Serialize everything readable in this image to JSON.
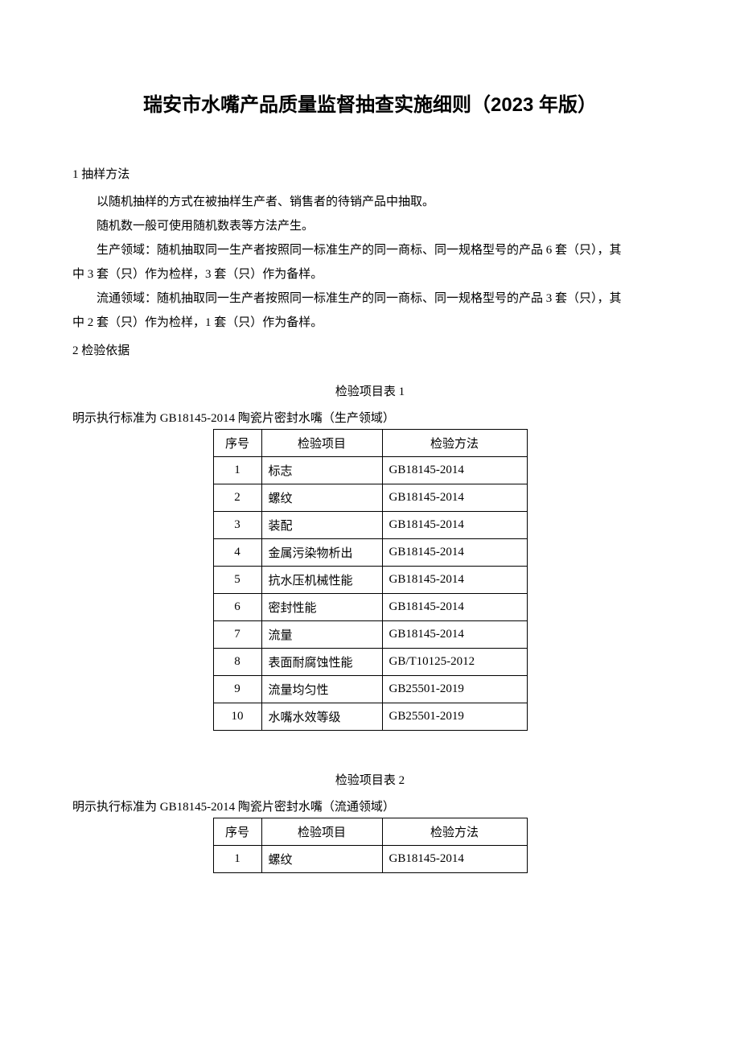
{
  "title": "瑞安市水嘴产品质量监督抽查实施细则（2023 年版）",
  "section1": {
    "heading": "1 抽样方法",
    "p1": "以随机抽样的方式在被抽样生产者、销售者的待销产品中抽取。",
    "p2": "随机数一般可使用随机数表等方法产生。",
    "p3a": "生产领域：随机抽取同一生产者按照同一标准生产的同一商标、同一规格型号的产品 6 套（只），其",
    "p3b": "中 3 套（只）作为检样，3 套（只）作为备样。",
    "p4a": "流通领域：随机抽取同一生产者按照同一标准生产的同一商标、同一规格型号的产品 3 套（只），其",
    "p4b": "中 2 套（只）作为检样，1 套（只）作为备样。"
  },
  "section2": {
    "heading": "2 检验依据"
  },
  "table1": {
    "caption": "检验项目表 1",
    "subtitle": "明示执行标准为 GB18145-2014 陶瓷片密封水嘴（生产领域）",
    "headers": {
      "num": "序号",
      "item": "检验项目",
      "method": "检验方法"
    },
    "rows": [
      {
        "num": "1",
        "item": "标志",
        "method": "GB18145-2014"
      },
      {
        "num": "2",
        "item": "螺纹",
        "method": "GB18145-2014"
      },
      {
        "num": "3",
        "item": "装配",
        "method": "GB18145-2014"
      },
      {
        "num": "4",
        "item": "金属污染物析出",
        "method": "GB18145-2014"
      },
      {
        "num": "5",
        "item": "抗水压机械性能",
        "method": "GB18145-2014"
      },
      {
        "num": "6",
        "item": "密封性能",
        "method": "GB18145-2014"
      },
      {
        "num": "7",
        "item": "流量",
        "method": "GB18145-2014"
      },
      {
        "num": "8",
        "item": "表面耐腐蚀性能",
        "method": "GB/T10125-2012"
      },
      {
        "num": "9",
        "item": "流量均匀性",
        "method": "GB25501-2019"
      },
      {
        "num": "10",
        "item": "水嘴水效等级",
        "method": "GB25501-2019"
      }
    ]
  },
  "table2": {
    "caption": "检验项目表 2",
    "subtitle": "明示执行标准为 GB18145-2014 陶瓷片密封水嘴（流通领域）",
    "headers": {
      "num": "序号",
      "item": "检验项目",
      "method": "检验方法"
    },
    "rows": [
      {
        "num": "1",
        "item": "螺纹",
        "method": "GB18145-2014"
      }
    ]
  }
}
